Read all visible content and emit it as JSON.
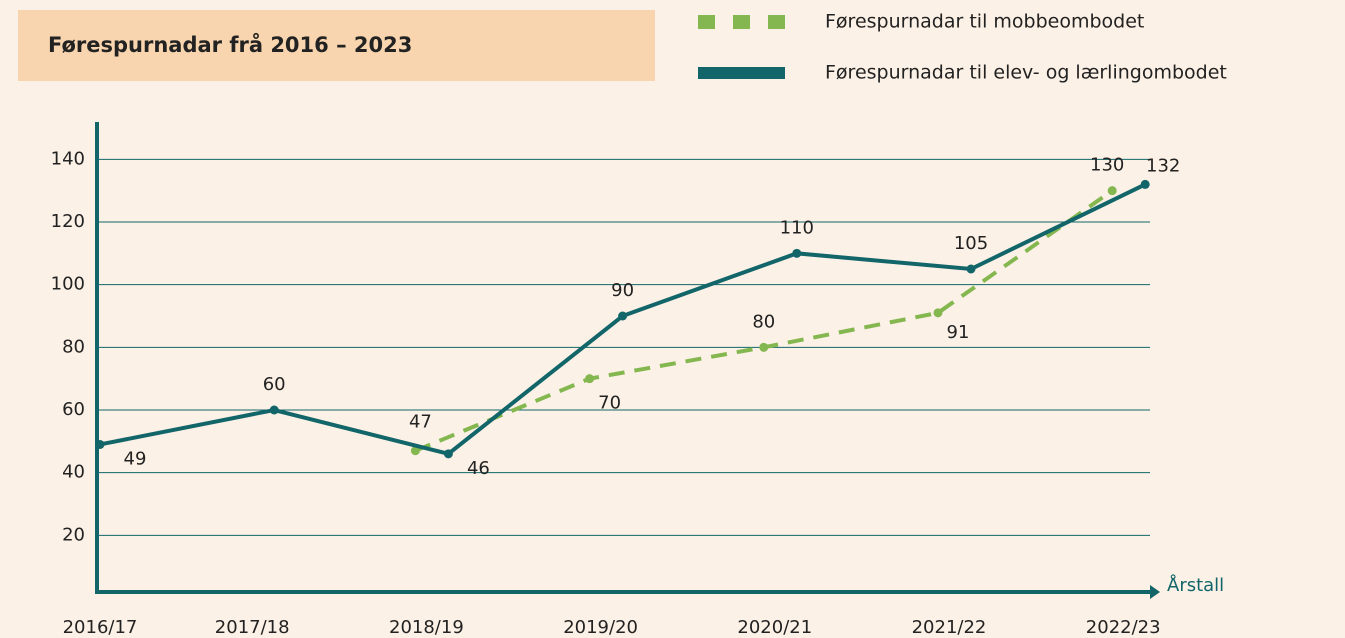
{
  "chart_data": {
    "type": "line",
    "title": "Førespurnadar frå 2016 – 2023",
    "x_label": "Årstall",
    "categories": [
      "2016/17",
      "2017/18",
      "2018/19",
      "2019/20",
      "2020/21",
      "2021/22",
      "2022/23"
    ],
    "series": [
      {
        "name": "Førespurnadar til mobbeombodet",
        "color": "#84b74f",
        "dashed": true,
        "values": [
          null,
          null,
          47,
          70,
          80,
          91,
          130
        ]
      },
      {
        "name": "Førespurnadar til elev- og lærlingombodet",
        "color": "#12666a",
        "dashed": false,
        "values": [
          49,
          60,
          46,
          90,
          110,
          105,
          132
        ]
      }
    ],
    "ylim": [
      0,
      150
    ],
    "yticks": [
      20,
      40,
      60,
      80,
      100,
      120,
      140
    ],
    "grid": true
  }
}
